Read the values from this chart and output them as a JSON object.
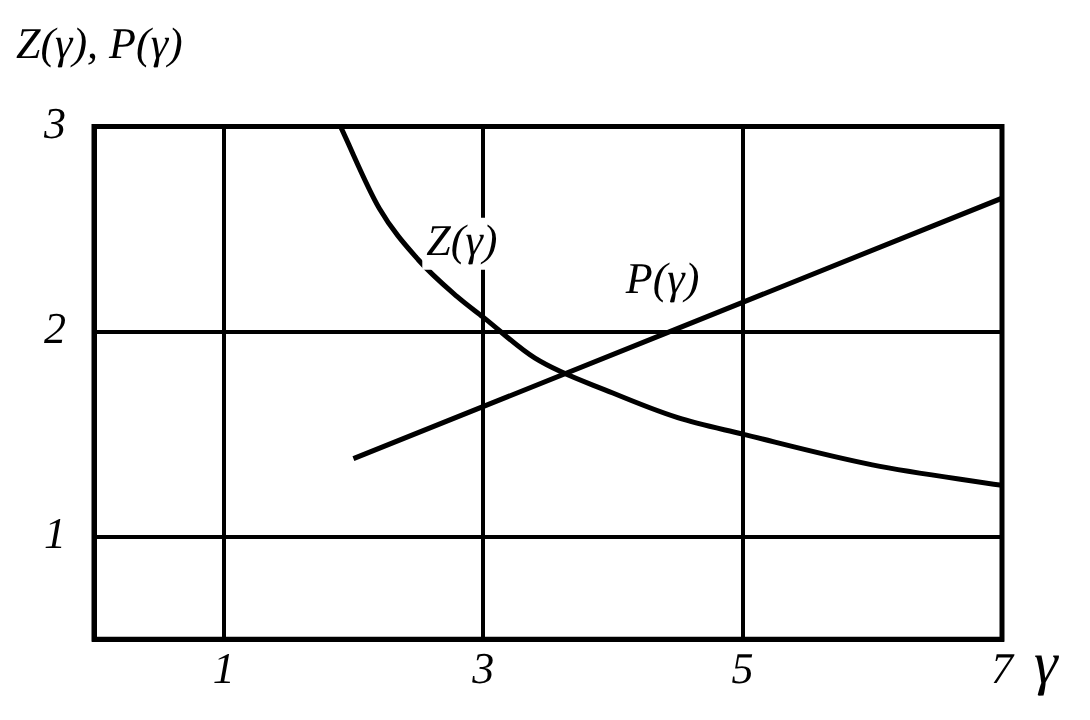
{
  "chart_data": {
    "type": "line",
    "xlabel": "γ",
    "ylabel": "Z(γ), P(γ)",
    "series": [
      {
        "name": "Z(γ)",
        "color": "#000000",
        "x": [
          1.9,
          2.2,
          2.5,
          2.8,
          3.0,
          3.4,
          4,
          4.5,
          5,
          6,
          7
        ],
        "values": [
          3.0,
          2.6,
          2.35,
          2.17,
          2.07,
          1.87,
          1.7,
          1.58,
          1.5,
          1.35,
          1.25
        ]
      },
      {
        "name": "P(γ)",
        "color": "#000000",
        "x": [
          2,
          7
        ],
        "values": [
          1.38,
          2.65
        ]
      }
    ],
    "xlim": [
      0,
      7
    ],
    "xticks": [
      1,
      3,
      5,
      7
    ],
    "ylim": [
      0.5,
      3
    ],
    "yticks": [
      1,
      2,
      3
    ],
    "grid": true,
    "legend": false,
    "marker": "none",
    "line_style": "solid"
  }
}
